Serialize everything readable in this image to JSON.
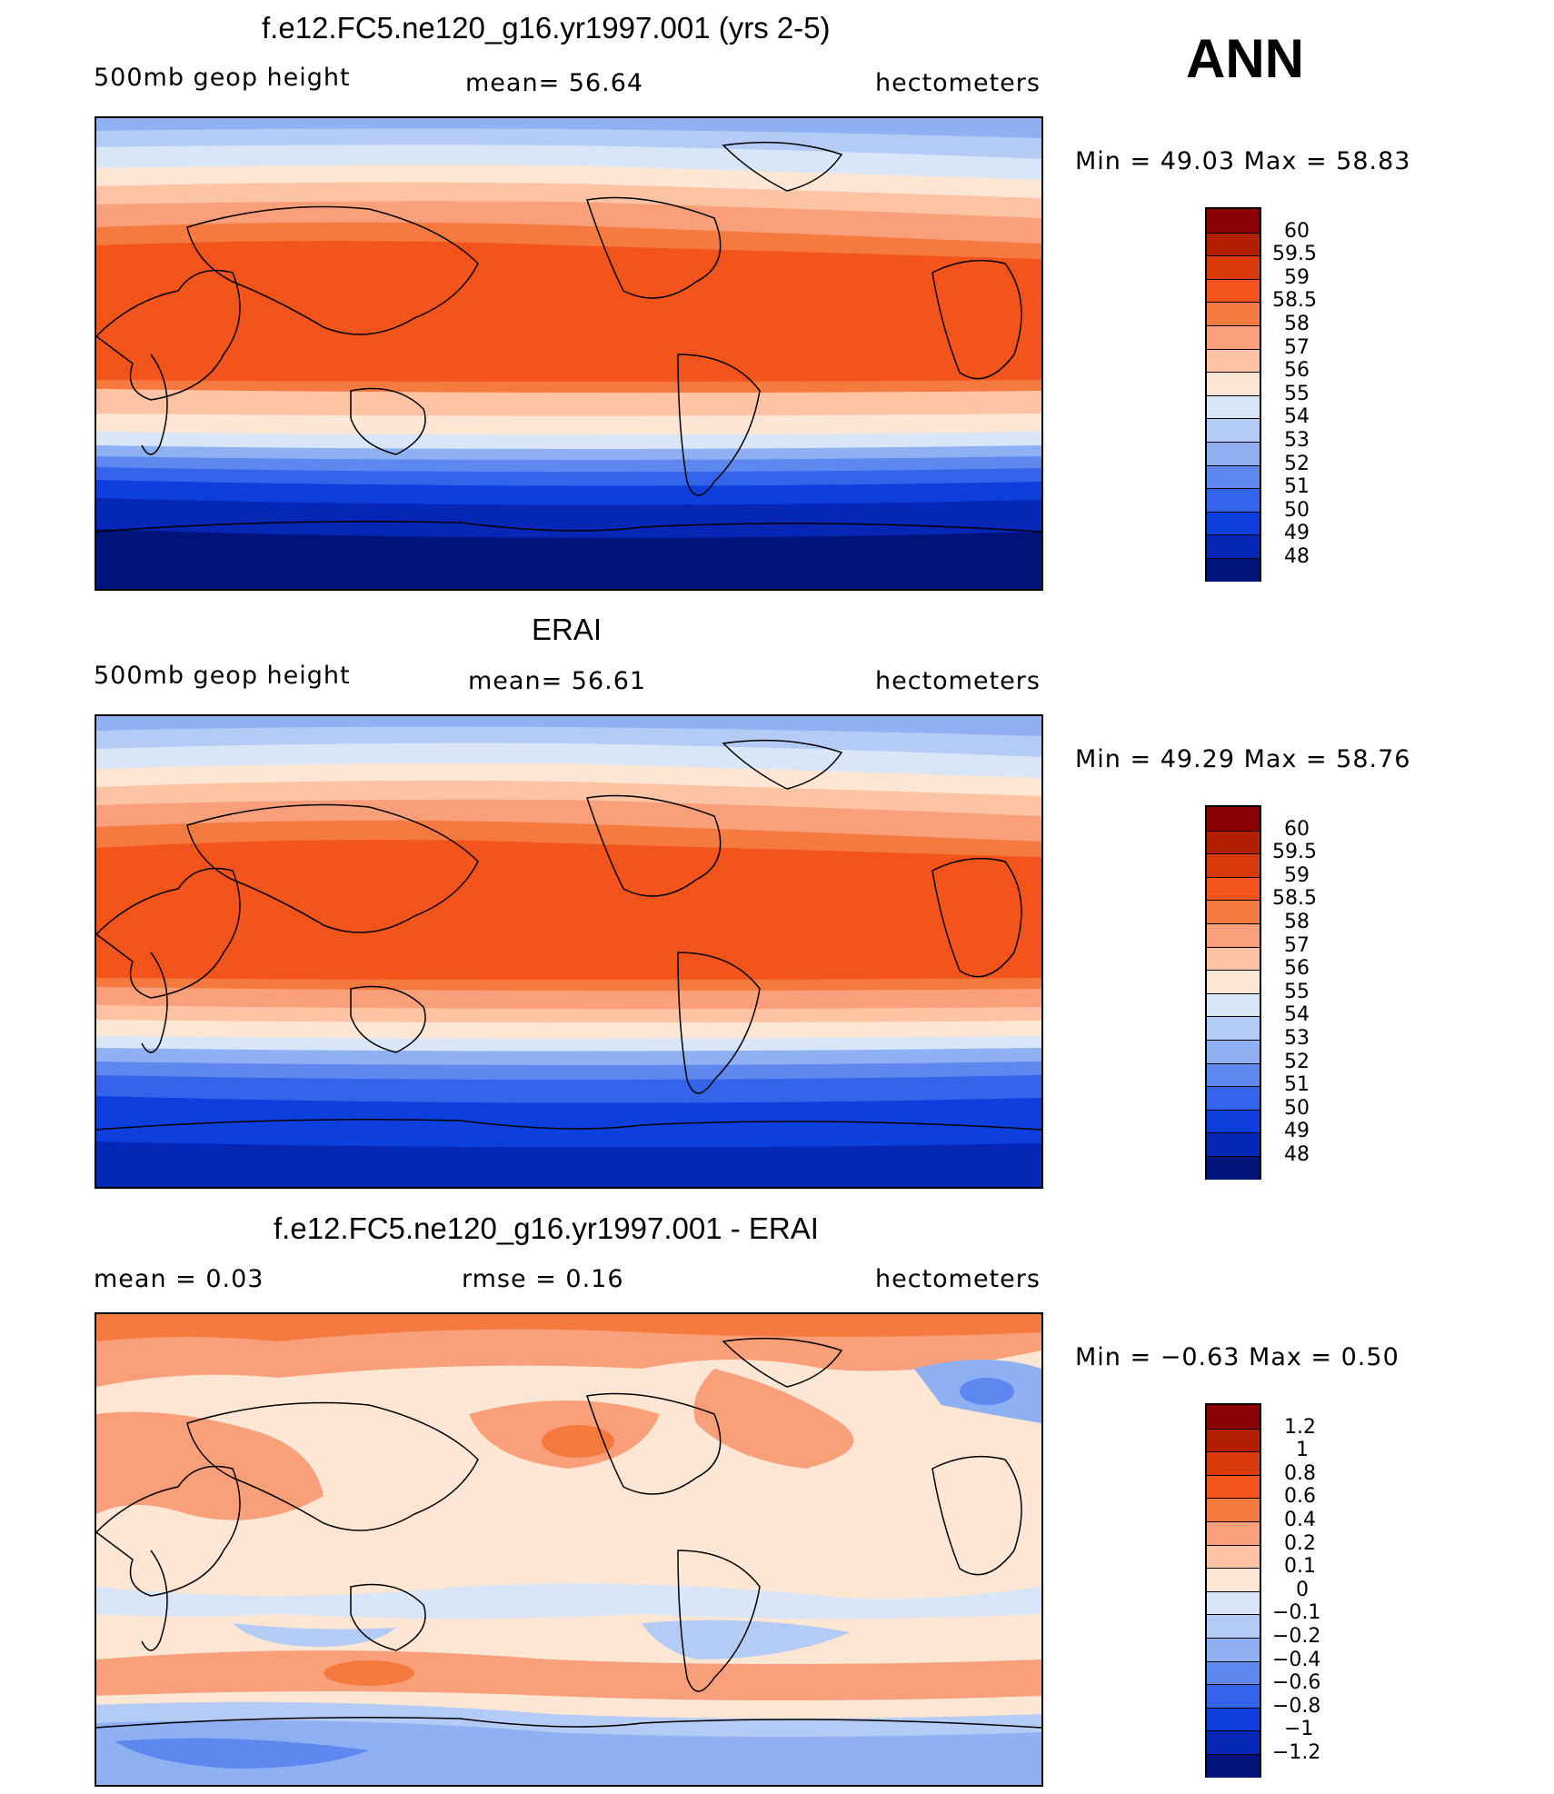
{
  "season": "ANN",
  "panels": [
    {
      "title": "f.e12.FC5.ne120_g16.yr1997.001 (yrs 2-5)",
      "left_label": "500mb  geop  height",
      "center_label": "mean=   56.64",
      "right_label": "hectometers",
      "min_max": "Min  =    49.03  Max  =    58.83",
      "type": "mean"
    },
    {
      "title": "ERAI",
      "left_label": "500mb  geop  height",
      "center_label": "mean=   56.61",
      "right_label": "hectometers",
      "min_max": "Min  =    49.29  Max  =    58.76",
      "type": "mean"
    },
    {
      "title": "f.e12.FC5.ne120_g16.yr1997.001 - ERAI",
      "left_label": "mean  =     0.03",
      "center_label": "rmse  =     0.16",
      "right_label": "hectometers",
      "min_max": "Min  =   −0.63  Max  =      0.50",
      "type": "diff"
    }
  ],
  "colorbar_mean": {
    "labels": [
      "60",
      "59.5",
      "59",
      "58.5",
      "58",
      "57",
      "56",
      "55",
      "54",
      "53",
      "52",
      "51",
      "50",
      "49",
      "48"
    ],
    "colors": [
      "#8b0000",
      "#b22000",
      "#d93a0a",
      "#f2541c",
      "#f57a40",
      "#f9a07a",
      "#fcc4a4",
      "#fde7d4",
      "#d8e6f8",
      "#b4ccf5",
      "#8fb0f3",
      "#5e88ef",
      "#3464ea",
      "#0d3fdd",
      "#0626b5",
      "#00137a"
    ]
  },
  "colorbar_diff": {
    "labels": [
      "1.2",
      "1",
      "0.8",
      "0.6",
      "0.4",
      "0.2",
      "0.1",
      "0",
      "−0.1",
      "−0.2",
      "−0.4",
      "−0.6",
      "−0.8",
      "−1",
      "−1.2"
    ],
    "colors": [
      "#8b0000",
      "#b22000",
      "#d93a0a",
      "#f2541c",
      "#f57a40",
      "#f9a07a",
      "#fcc4a4",
      "#fde7d4",
      "#d8e6f8",
      "#b4ccf5",
      "#8fb0f3",
      "#5e88ef",
      "#3464ea",
      "#0d3fdd",
      "#0626b5",
      "#00137a"
    ]
  }
}
